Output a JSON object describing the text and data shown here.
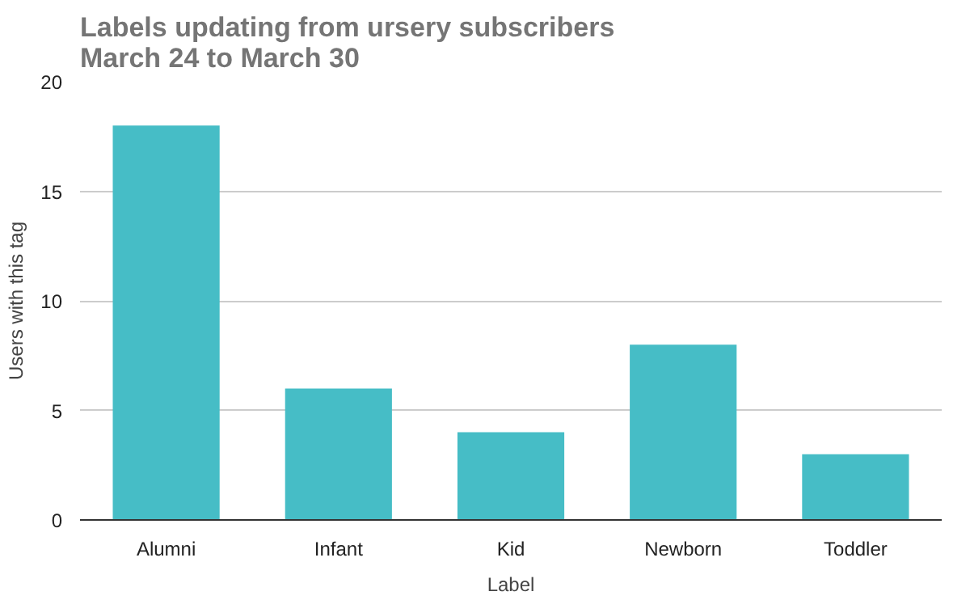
{
  "chart_data": {
    "type": "bar",
    "title": "Labels updating from ursery subscribers\nMarch 24 to March 30",
    "xlabel": "Label",
    "ylabel": "Users with this tag",
    "categories": [
      "Alumni",
      "Infant",
      "Kid",
      "Newborn",
      "Toddler"
    ],
    "values": [
      18,
      6,
      4,
      8,
      3
    ],
    "color": "#46bdc6",
    "ylim": [
      0,
      20
    ],
    "yticks": [
      0,
      5,
      10,
      15,
      20
    ],
    "grid": "y"
  }
}
